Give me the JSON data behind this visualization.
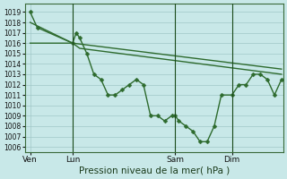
{
  "background_color": "#c8e8e8",
  "grid_color": "#a0c8c8",
  "line_color": "#2d6a2d",
  "xlabel": "Pression niveau de la mer( hPa )",
  "ylim": [
    1005.5,
    1019.8
  ],
  "yticks": [
    1006,
    1007,
    1008,
    1009,
    1010,
    1011,
    1012,
    1013,
    1014,
    1015,
    1016,
    1017,
    1018,
    1019
  ],
  "xlim": [
    -1,
    145
  ],
  "xtick_positions": [
    2,
    26,
    84,
    116
  ],
  "xtick_labels": [
    "Ven",
    "Lun",
    "Sam",
    "Dim"
  ],
  "vlines": [
    26,
    84,
    116
  ],
  "detail_series": {
    "x": [
      2,
      6,
      26,
      28,
      30,
      34,
      38,
      42,
      46,
      50,
      54,
      58,
      62,
      66,
      70,
      74,
      78,
      82,
      84,
      86,
      90,
      94,
      98,
      102,
      106,
      110,
      116,
      120,
      124,
      128,
      132,
      136,
      140,
      144
    ],
    "y": [
      1019,
      1017.5,
      1016,
      1017,
      1016.5,
      1015,
      1013,
      1012.5,
      1011,
      1011,
      1011.5,
      1012,
      1012.5,
      1012,
      1009,
      1009,
      1008.5,
      1009,
      1009,
      1008.5,
      1008,
      1007.5,
      1006.5,
      1006.5,
      1008,
      1011,
      1011,
      1012,
      1012,
      1013,
      1013,
      1012.5,
      1011,
      1012.5
    ],
    "linewidth": 1.0,
    "markersize": 2.5
  },
  "trend_series": [
    {
      "x": [
        2,
        26,
        144
      ],
      "y": [
        1018,
        1016,
        1013.5
      ],
      "linewidth": 1.0
    },
    {
      "x": [
        2,
        26,
        30,
        144
      ],
      "y": [
        1016,
        1016,
        1015.5,
        1013
      ],
      "linewidth": 1.0
    }
  ]
}
